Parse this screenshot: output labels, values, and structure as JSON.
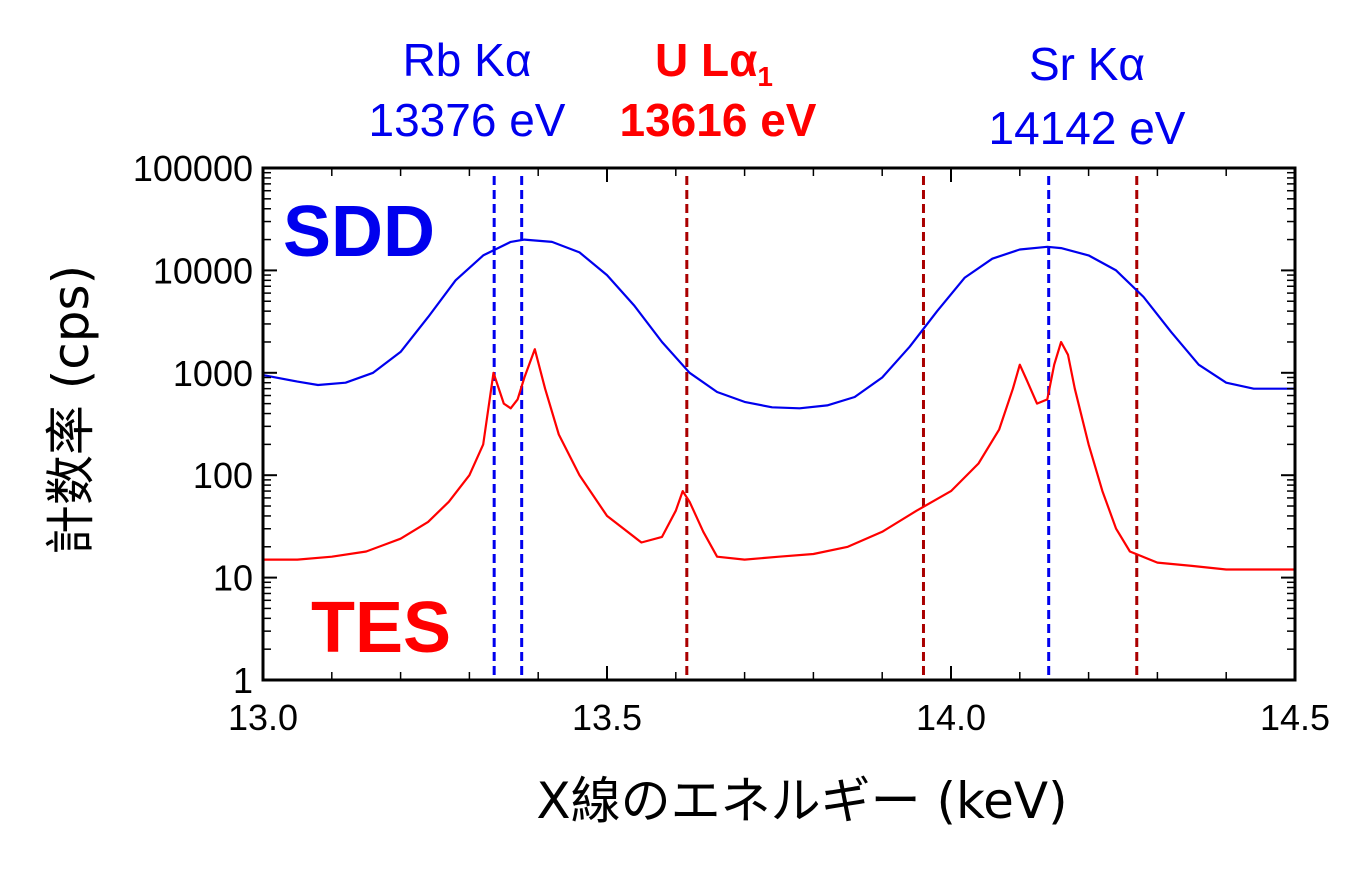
{
  "chart_data": {
    "type": "line",
    "xlabel": "X線のエネルギー (keV)",
    "ylabel": "計数率 (cps)",
    "xlim": [
      13.0,
      14.5
    ],
    "ylim": [
      1,
      100000
    ],
    "yscale": "log",
    "x_ticks": [
      "13.0",
      "13.5",
      "14.0",
      "14.5"
    ],
    "y_ticks": [
      "1",
      "10",
      "100",
      "1000",
      "10000",
      "100000"
    ],
    "colors": {
      "sdd": "#0000ee",
      "tes": "#ff0000",
      "blue_line": "#0000ee",
      "red_line": "#aa0000"
    },
    "series": [
      {
        "name": "SDD",
        "color": "#0000ee",
        "x": [
          13.0,
          13.05,
          13.08,
          13.12,
          13.16,
          13.2,
          13.24,
          13.28,
          13.32,
          13.36,
          13.38,
          13.42,
          13.46,
          13.5,
          13.54,
          13.58,
          13.62,
          13.66,
          13.7,
          13.74,
          13.78,
          13.82,
          13.86,
          13.9,
          13.94,
          13.98,
          14.02,
          14.06,
          14.1,
          14.14,
          14.16,
          14.2,
          14.24,
          14.28,
          14.32,
          14.36,
          14.4,
          14.44,
          14.5
        ],
        "y": [
          950,
          820,
          760,
          800,
          1000,
          1600,
          3500,
          8000,
          14000,
          19000,
          20000,
          19000,
          15000,
          9000,
          4500,
          2000,
          1000,
          650,
          520,
          460,
          450,
          480,
          580,
          900,
          1800,
          4000,
          8500,
          13000,
          16000,
          17000,
          16500,
          14000,
          10000,
          5500,
          2500,
          1200,
          800,
          700,
          700
        ]
      },
      {
        "name": "TES",
        "color": "#ff0000",
        "x": [
          13.0,
          13.05,
          13.1,
          13.15,
          13.2,
          13.24,
          13.27,
          13.3,
          13.32,
          13.335,
          13.35,
          13.36,
          13.37,
          13.38,
          13.395,
          13.41,
          13.43,
          13.46,
          13.5,
          13.55,
          13.58,
          13.6,
          13.61,
          13.62,
          13.64,
          13.66,
          13.7,
          13.75,
          13.8,
          13.85,
          13.9,
          13.95,
          14.0,
          14.04,
          14.07,
          14.09,
          14.1,
          14.11,
          14.125,
          14.14,
          14.15,
          14.16,
          14.17,
          14.18,
          14.2,
          14.22,
          14.24,
          14.26,
          14.3,
          14.35,
          14.4,
          14.45,
          14.5
        ],
        "y": [
          15,
          15,
          16,
          18,
          24,
          35,
          55,
          100,
          200,
          1000,
          500,
          450,
          550,
          900,
          1700,
          700,
          250,
          100,
          40,
          22,
          25,
          45,
          70,
          55,
          28,
          16,
          15,
          16,
          17,
          20,
          28,
          45,
          70,
          130,
          280,
          700,
          1200,
          850,
          500,
          550,
          1200,
          2000,
          1500,
          700,
          200,
          70,
          30,
          18,
          14,
          13,
          12,
          12,
          12
        ]
      }
    ],
    "reference_lines": [
      {
        "x": 13.336,
        "color": "#0000ee",
        "style": "dashed"
      },
      {
        "x": 13.376,
        "color": "#0000ee",
        "style": "dashed"
      },
      {
        "x": 13.616,
        "color": "#aa0000",
        "style": "dashed"
      },
      {
        "x": 13.96,
        "color": "#aa0000",
        "style": "dashed"
      },
      {
        "x": 14.142,
        "color": "#0000ee",
        "style": "dashed"
      },
      {
        "x": 14.27,
        "color": "#aa0000",
        "style": "dashed"
      }
    ],
    "annotations": {
      "rb": {
        "line1": "Rb Kα",
        "line2": "13376 eV",
        "color": "#0000ee"
      },
      "u": {
        "prefix": "U Lα",
        "subscript": "1",
        "line2": "13616 eV",
        "color": "#ff0000"
      },
      "sr": {
        "line1": "Sr Kα",
        "line2": "14142 eV",
        "color": "#0000ee"
      }
    },
    "legend": {
      "sdd": {
        "label": "SDD",
        "color": "#0000ee"
      },
      "tes": {
        "label": "TES",
        "color": "#ff0000"
      }
    }
  }
}
